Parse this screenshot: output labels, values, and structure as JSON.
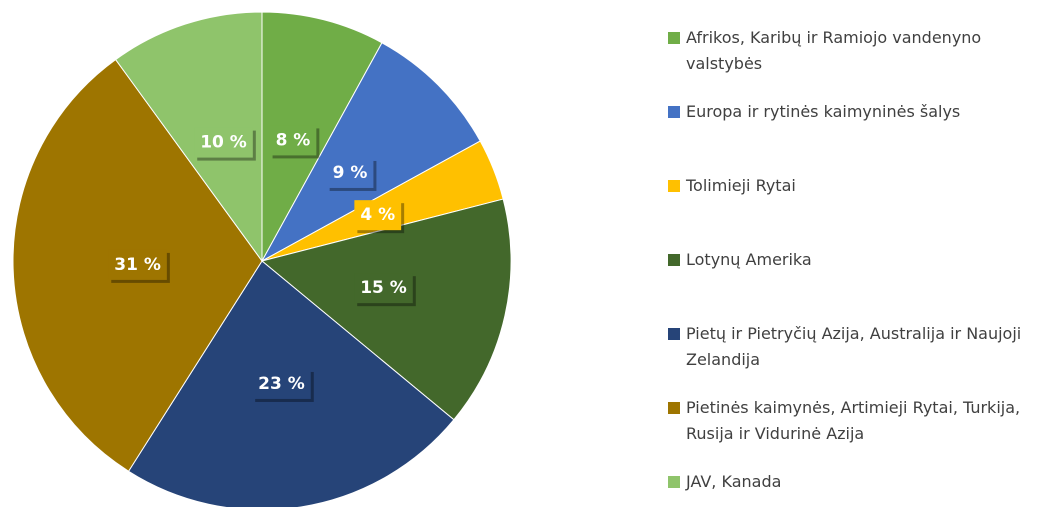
{
  "chart_data": {
    "type": "pie",
    "categories": [
      "Afrikos, Karibų ir Ramiojo vandenyno valstybės",
      "Europa ir rytinės kaimyninės šalys",
      "Tolimieji Rytai",
      "Lotynų Amerika",
      "Pietų ir Pietryčių Azija, Australija ir Naujoji Zelandija",
      "Pietinės kaimynės, Artimieji Rytai, Turkija, Rusija ir Vidurinė Azija",
      "JAV, Kanada"
    ],
    "values": [
      8,
      9,
      4,
      15,
      23,
      31,
      10
    ],
    "value_labels": [
      "8 %",
      "9 %",
      "4 %",
      "15 %",
      "23 %",
      "31 %",
      "10 %"
    ],
    "colors": [
      "#70ad47",
      "#4472c4",
      "#ffc000",
      "#43682b",
      "#264478",
      "#9e7500",
      "#8fc46b"
    ],
    "legend": "right"
  }
}
